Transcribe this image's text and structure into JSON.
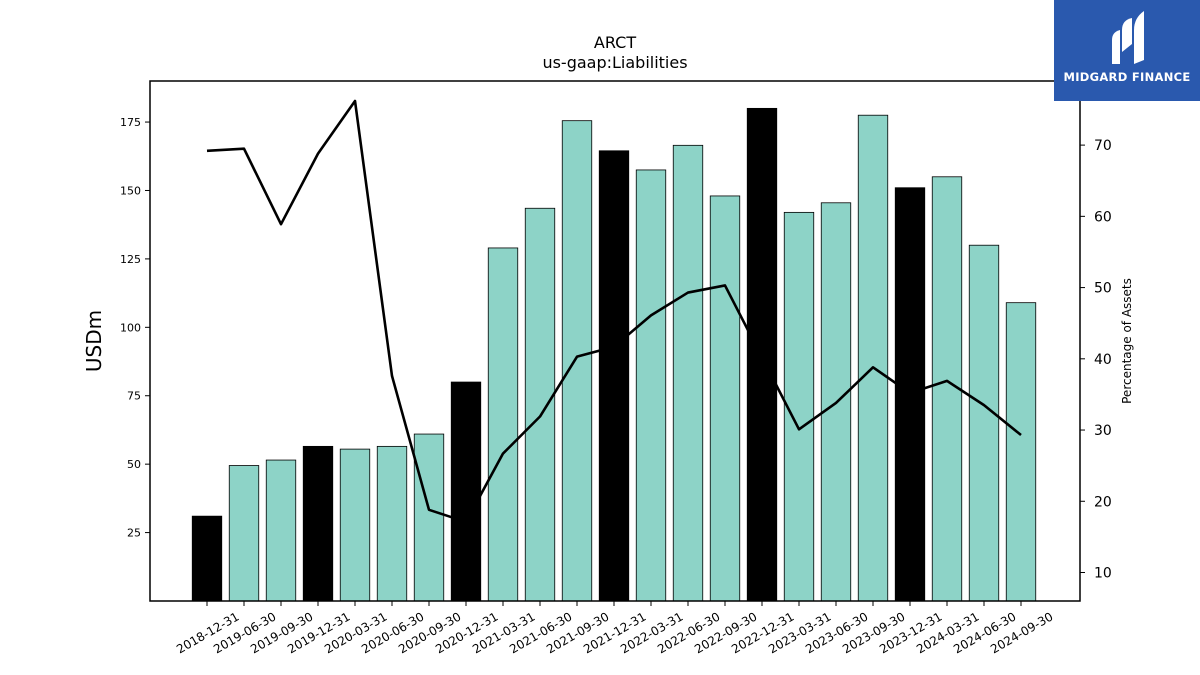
{
  "chart_data": {
    "type": "bar",
    "title": "ARCT",
    "subtitle": "us-gaap:Liabilities",
    "ylabel": "USDm",
    "y2label": "Percentage of Assets",
    "ylim": [
      0,
      190
    ],
    "y2lim": [
      6,
      79
    ],
    "yticks": [
      25,
      50,
      75,
      100,
      125,
      150,
      175
    ],
    "y2ticks": [
      10,
      20,
      30,
      40,
      50,
      60,
      70
    ],
    "categories": [
      "2018-12-31",
      "2019-06-30",
      "2019-09-30",
      "2019-12-31",
      "2020-03-31",
      "2020-06-30",
      "2020-09-30",
      "2020-12-31",
      "2021-03-31",
      "2021-06-30",
      "2021-09-30",
      "2021-12-31",
      "2022-03-31",
      "2022-06-30",
      "2022-09-30",
      "2022-12-31",
      "2023-03-31",
      "2023-06-30",
      "2023-09-30",
      "2023-12-31",
      "2024-03-31",
      "2024-06-30",
      "2024-09-30"
    ],
    "series": [
      {
        "type": "bar",
        "axis": "left",
        "values": [
          31,
          49.5,
          51.5,
          56.5,
          55.5,
          56.5,
          61,
          80,
          129,
          143.5,
          175.5,
          164.5,
          157.5,
          166.5,
          148,
          180,
          142,
          145.5,
          177.5,
          151,
          155,
          130,
          109
        ],
        "colors": [
          "#000000",
          "#8dd3c7",
          "#8dd3c7",
          "#000000",
          "#8dd3c7",
          "#8dd3c7",
          "#8dd3c7",
          "#000000",
          "#8dd3c7",
          "#8dd3c7",
          "#8dd3c7",
          "#000000",
          "#8dd3c7",
          "#8dd3c7",
          "#8dd3c7",
          "#000000",
          "#8dd3c7",
          "#8dd3c7",
          "#8dd3c7",
          "#000000",
          "#8dd3c7",
          "#8dd3c7",
          "#8dd3c7"
        ]
      },
      {
        "type": "line",
        "axis": "right",
        "color": "#000000",
        "values": [
          69.2,
          69.5,
          58.9,
          68.8,
          76.2,
          37.6,
          18.8,
          17.1,
          26.7,
          31.9,
          40.3,
          41.7,
          46.1,
          49.3,
          50.3,
          40.2,
          30.1,
          33.8,
          38.8,
          35.2,
          36.9,
          33.5,
          29.3
        ]
      }
    ],
    "grid": false
  },
  "logo": {
    "text": "MIDGARD FINANCE",
    "color": "#2a59ae"
  }
}
